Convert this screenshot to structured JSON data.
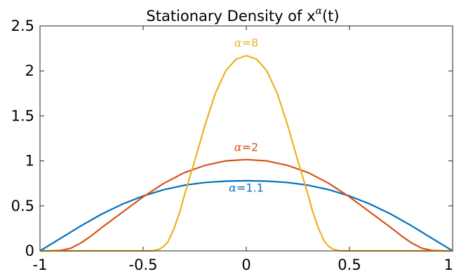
{
  "chart_data": {
    "type": "line",
    "title": "Stationary Density of x",
    "title_superscript": "α",
    "title_suffix": "(t)",
    "xlabel": "",
    "ylabel": "",
    "xlim": [
      -1,
      1
    ],
    "ylim": [
      0,
      2.5
    ],
    "grid": false,
    "x_ticks": [
      -1,
      -0.5,
      0,
      0.5,
      1
    ],
    "x_tick_labels": [
      "-1",
      "-0.5",
      "0",
      "0.5",
      "1"
    ],
    "y_ticks": [
      0,
      0.5,
      1,
      1.5,
      2,
      2.5
    ],
    "y_tick_labels": [
      "0",
      "0.5",
      "1",
      "1.5",
      "2",
      "2.5"
    ],
    "series": [
      {
        "label_greek": "α",
        "label_value": "=1.1",
        "color": "#0072BD",
        "x": [
          -1,
          -0.9,
          -0.8,
          -0.7,
          -0.6,
          -0.5,
          -0.4,
          -0.3,
          -0.2,
          -0.1,
          0,
          0.1,
          0.2,
          0.3,
          0.4,
          0.5,
          0.6,
          0.7,
          0.8,
          0.9,
          1
        ],
        "y": [
          0,
          0.14,
          0.28,
          0.41,
          0.52,
          0.61,
          0.68,
          0.73,
          0.76,
          0.775,
          0.78,
          0.775,
          0.76,
          0.73,
          0.68,
          0.61,
          0.52,
          0.41,
          0.28,
          0.14,
          0
        ]
      },
      {
        "label_greek": "α",
        "label_value": "=2",
        "color": "#D95319",
        "x": [
          -1,
          -0.95,
          -0.9,
          -0.85,
          -0.8,
          -0.75,
          -0.7,
          -0.6,
          -0.5,
          -0.4,
          -0.3,
          -0.2,
          -0.1,
          0,
          0.1,
          0.2,
          0.3,
          0.4,
          0.5,
          0.6,
          0.7,
          0.75,
          0.8,
          0.85,
          0.9,
          0.95,
          1
        ],
        "y": [
          0,
          0,
          0.005,
          0.03,
          0.09,
          0.17,
          0.26,
          0.43,
          0.6,
          0.75,
          0.87,
          0.95,
          1.0,
          1.015,
          1.0,
          0.95,
          0.87,
          0.75,
          0.6,
          0.43,
          0.26,
          0.17,
          0.09,
          0.03,
          0.005,
          0,
          0
        ]
      },
      {
        "label_greek": "α",
        "label_value": "=8",
        "color": "#EDB120",
        "x": [
          -1,
          -0.5,
          -0.45,
          -0.42,
          -0.4,
          -0.38,
          -0.35,
          -0.32,
          -0.3,
          -0.25,
          -0.2,
          -0.15,
          -0.1,
          -0.05,
          0,
          0.05,
          0.1,
          0.15,
          0.2,
          0.25,
          0.3,
          0.32,
          0.35,
          0.38,
          0.4,
          0.42,
          0.45,
          0.5,
          1
        ],
        "y": [
          0,
          0,
          0.002,
          0.02,
          0.05,
          0.1,
          0.25,
          0.45,
          0.62,
          1.0,
          1.4,
          1.75,
          2.0,
          2.13,
          2.17,
          2.13,
          2.0,
          1.75,
          1.4,
          1.0,
          0.62,
          0.45,
          0.25,
          0.1,
          0.05,
          0.02,
          0.002,
          0,
          0
        ]
      }
    ]
  }
}
